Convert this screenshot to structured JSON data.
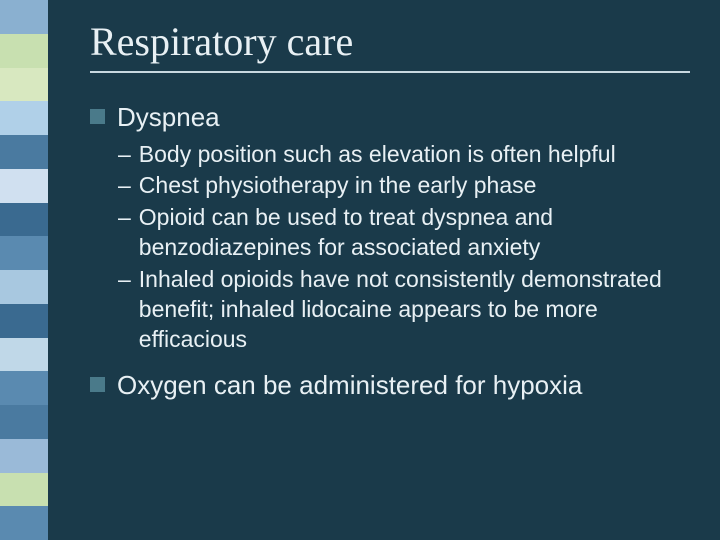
{
  "slide": {
    "background_color": "#1a3a4a",
    "text_color": "#e8f0f4",
    "bullet_color": "#4a7a8a",
    "title_font": "Times New Roman",
    "body_font": "Arial",
    "title_fontsize": 40,
    "bullet_fontsize": 26,
    "sub_fontsize": 23
  },
  "sidebar": {
    "stripes": [
      "#8ab0d0",
      "#c8e0b0",
      "#d8e8c0",
      "#b0d0e8",
      "#4a7aa0",
      "#d0e0f0",
      "#3a6a90",
      "#5a8ab0",
      "#a8c8e0",
      "#3a6a90",
      "#c0d8e8",
      "#5a8ab0",
      "#4a7aa0",
      "#9abad8",
      "#c8e0b0",
      "#5a8ab0"
    ]
  },
  "title": "Respiratory care",
  "bullets": [
    {
      "text": "Dyspnea",
      "sub": [
        "Body position such as elevation is often helpful",
        "Chest physiotherapy in the early phase",
        "Opioid can be used to treat dyspnea and benzodiazepines for associated anxiety",
        "Inhaled opioids have not consistently demonstrated benefit; inhaled lidocaine appears to be more efficacious"
      ]
    },
    {
      "text": "Oxygen can be administered for hypoxia",
      "sub": []
    }
  ]
}
